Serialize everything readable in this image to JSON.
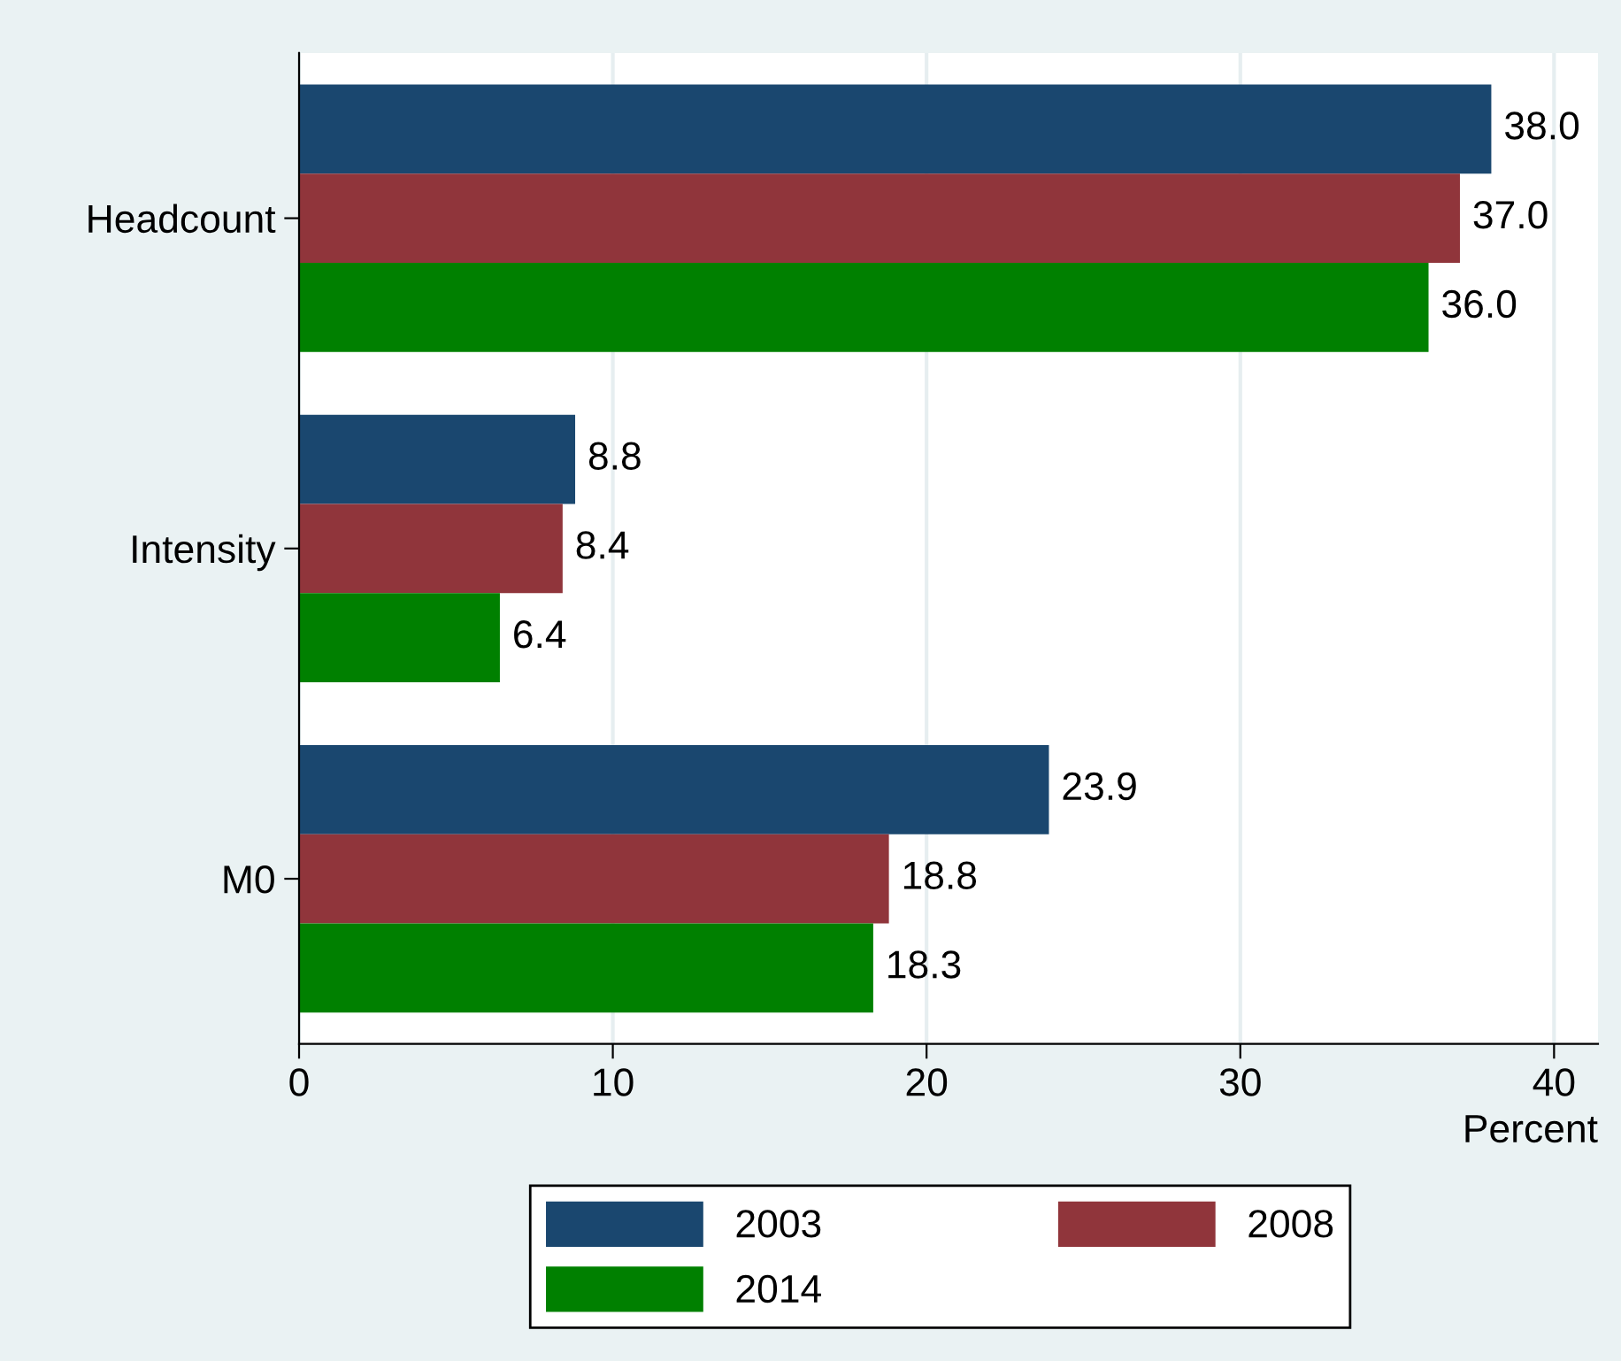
{
  "chart_data": {
    "type": "bar",
    "orientation": "horizontal",
    "xlabel": "Percent",
    "categories": [
      "Headcount",
      "Intensity",
      "M0"
    ],
    "series": [
      {
        "name": "2003",
        "color": "#1a476f",
        "values": [
          38.0,
          8.8,
          23.9
        ],
        "value_labels": [
          "38.0",
          "8.8",
          "23.9"
        ]
      },
      {
        "name": "2008",
        "color": "#90353b",
        "values": [
          37.0,
          8.4,
          18.8
        ],
        "value_labels": [
          "37.0",
          "8.4",
          "18.8"
        ]
      },
      {
        "name": "2014",
        "color": "#008000",
        "values": [
          36.0,
          6.4,
          18.3
        ],
        "value_labels": [
          "36.0",
          "6.4",
          "18.3"
        ]
      }
    ],
    "xlim": [
      0,
      41.4
    ],
    "xticks": [
      0,
      10,
      20,
      30,
      40
    ],
    "grid": "x",
    "legend": "bottom"
  }
}
